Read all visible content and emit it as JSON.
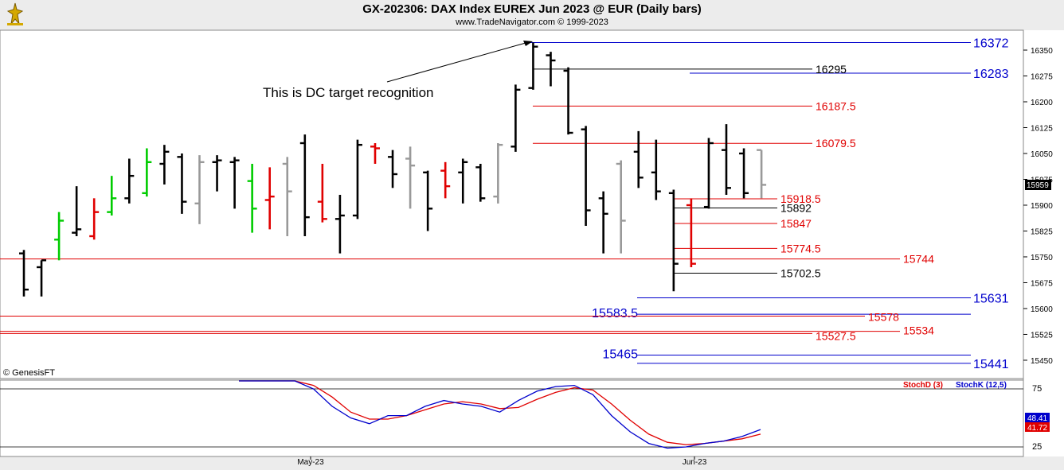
{
  "header": {
    "title": "GX-202306:  DAX Index EUREX Jun 2023 @ EUR  (Daily bars)",
    "subtitle": "www.TradeNavigator.com © 1999-2023"
  },
  "copyright": "© GenesisFT",
  "annotation": "This is DC target recognition",
  "price_axis": {
    "ticks": [
      "16350",
      "16275",
      "16200",
      "16125",
      "16050",
      "15975",
      "15900",
      "15825",
      "15750",
      "15675",
      "15600",
      "15525",
      "15450"
    ],
    "last_price_label": "15959"
  },
  "date_axis": {
    "labels": [
      "May-23",
      "Jun-23"
    ]
  },
  "levels": {
    "blue": [
      {
        "label": "16372",
        "value": 16372
      },
      {
        "label": "16283",
        "value": 16283
      },
      {
        "label": "15631",
        "value": 15631
      },
      {
        "label": "15583.5",
        "value": 15583.5
      },
      {
        "label": "15465",
        "value": 15465
      },
      {
        "label": "15441",
        "value": 15441
      }
    ],
    "red": [
      {
        "label": "16187.5",
        "value": 16187.5
      },
      {
        "label": "16079.5",
        "value": 16079.5
      },
      {
        "label": "15918.5",
        "value": 15918.5
      },
      {
        "label": "15847",
        "value": 15847
      },
      {
        "label": "15774.5",
        "value": 15774.5
      },
      {
        "label": "15744",
        "value": 15744
      },
      {
        "label": "15578",
        "value": 15578
      },
      {
        "label": "15534",
        "value": 15534
      },
      {
        "label": "15527.5",
        "value": 15527.5
      }
    ],
    "black": [
      {
        "label": "16295",
        "value": 16295
      },
      {
        "label": "15892",
        "value": 15892
      },
      {
        "label": "15702.5",
        "value": 15702.5
      }
    ]
  },
  "stoch": {
    "legend_d": "StochD (3)",
    "legend_k": "StochK (12,5)",
    "ticks": [
      "75",
      "25"
    ],
    "value_k": "48.41",
    "value_d": "41.72",
    "k": [
      98,
      90,
      85,
      82,
      75,
      60,
      50,
      45,
      52,
      52,
      60,
      65,
      62,
      60,
      55,
      65,
      73,
      77,
      78,
      70,
      52,
      38,
      28,
      24,
      25,
      28,
      30,
      34,
      40
    ],
    "d": [
      98,
      95,
      90,
      85,
      78,
      68,
      55,
      49,
      49,
      52,
      57,
      62,
      64,
      62,
      58,
      59,
      66,
      72,
      76,
      74,
      62,
      48,
      36,
      29,
      27,
      28,
      30,
      32,
      36
    ]
  },
  "colors": {
    "blue": "#0000cc",
    "red": "#e00000",
    "green": "#00cc00",
    "gray": "#999999",
    "black": "#000000"
  },
  "chart_data": {
    "type": "ohlc",
    "title": "GX-202306:  DAX Index EUREX Jun 2023 @ EUR  (Daily bars)",
    "x_labels": [
      "May-23",
      "Jun-23"
    ],
    "ylim": [
      15400,
      16400
    ],
    "bars": [
      {
        "h": 15770,
        "l": 15635,
        "o": 15760,
        "c": 15655,
        "col": "black"
      },
      {
        "h": 15740,
        "l": 15635,
        "o": 15720,
        "c": 15740,
        "col": "black"
      },
      {
        "h": 15880,
        "l": 15740,
        "o": 15800,
        "c": 15855,
        "col": "green"
      },
      {
        "h": 15955,
        "l": 15810,
        "o": 15820,
        "c": 15830,
        "col": "black"
      },
      {
        "h": 15920,
        "l": 15800,
        "o": 15810,
        "c": 15880,
        "col": "red"
      },
      {
        "h": 15985,
        "l": 15870,
        "o": 15880,
        "c": 15920,
        "col": "green"
      },
      {
        "h": 16035,
        "l": 15905,
        "o": 15920,
        "c": 15985,
        "col": "black"
      },
      {
        "h": 16065,
        "l": 15925,
        "o": 15935,
        "c": 16025,
        "col": "green"
      },
      {
        "h": 16075,
        "l": 15960,
        "o": 16020,
        "c": 16055,
        "col": "black"
      },
      {
        "h": 16050,
        "l": 15875,
        "o": 16040,
        "c": 15910,
        "col": "black"
      },
      {
        "h": 16045,
        "l": 15845,
        "o": 15905,
        "c": 16025,
        "col": "gray"
      },
      {
        "h": 16045,
        "l": 15940,
        "o": 16025,
        "c": 16030,
        "col": "black"
      },
      {
        "h": 16040,
        "l": 15890,
        "o": 16025,
        "c": 16030,
        "col": "black"
      },
      {
        "h": 16020,
        "l": 15820,
        "o": 15970,
        "c": 15890,
        "col": "green"
      },
      {
        "h": 16010,
        "l": 15830,
        "o": 15915,
        "c": 15925,
        "col": "red"
      },
      {
        "h": 16040,
        "l": 15810,
        "o": 16020,
        "c": 15940,
        "col": "gray"
      },
      {
        "h": 16105,
        "l": 15810,
        "o": 16080,
        "c": 15865,
        "col": "black"
      },
      {
        "h": 16020,
        "l": 15850,
        "o": 15910,
        "c": 15860,
        "col": "red"
      },
      {
        "h": 15930,
        "l": 15760,
        "o": 15860,
        "c": 15870,
        "col": "black"
      },
      {
        "h": 16090,
        "l": 15860,
        "o": 15870,
        "c": 16075,
        "col": "black"
      },
      {
        "h": 16080,
        "l": 16020,
        "o": 16070,
        "c": 16065,
        "col": "red"
      },
      {
        "h": 16060,
        "l": 15950,
        "o": 16040,
        "c": 15990,
        "col": "black"
      },
      {
        "h": 16070,
        "l": 15890,
        "o": 16035,
        "c": 16015,
        "col": "gray"
      },
      {
        "h": 16000,
        "l": 15825,
        "o": 15995,
        "c": 15890,
        "col": "black"
      },
      {
        "h": 16025,
        "l": 15920,
        "o": 16000,
        "c": 15955,
        "col": "red"
      },
      {
        "h": 16035,
        "l": 15905,
        "o": 15995,
        "c": 16025,
        "col": "black"
      },
      {
        "h": 16020,
        "l": 15910,
        "o": 16010,
        "c": 15920,
        "col": "black"
      },
      {
        "h": 16080,
        "l": 15905,
        "o": 15925,
        "c": 16075,
        "col": "gray"
      },
      {
        "h": 16250,
        "l": 16055,
        "o": 16070,
        "c": 16235,
        "col": "black"
      },
      {
        "h": 16372,
        "l": 16235,
        "o": 16240,
        "c": 16360,
        "col": "black"
      },
      {
        "h": 16345,
        "l": 16245,
        "o": 16335,
        "c": 16320,
        "col": "black"
      },
      {
        "h": 16300,
        "l": 16105,
        "o": 16290,
        "c": 16110,
        "col": "black"
      },
      {
        "h": 16130,
        "l": 15840,
        "o": 16120,
        "c": 15885,
        "col": "black"
      },
      {
        "h": 15940,
        "l": 15760,
        "o": 15920,
        "c": 15875,
        "col": "black"
      },
      {
        "h": 16030,
        "l": 15760,
        "o": 16020,
        "c": 15855,
        "col": "gray"
      },
      {
        "h": 16115,
        "l": 15950,
        "o": 16055,
        "c": 15980,
        "col": "black"
      },
      {
        "h": 16090,
        "l": 15915,
        "o": 15995,
        "c": 15940,
        "col": "black"
      },
      {
        "h": 15945,
        "l": 15650,
        "o": 15935,
        "c": 15730,
        "col": "black"
      },
      {
        "h": 15920,
        "l": 15720,
        "o": 15900,
        "c": 15730,
        "col": "red"
      },
      {
        "h": 16095,
        "l": 15890,
        "o": 15895,
        "c": 16080,
        "col": "black"
      },
      {
        "h": 16135,
        "l": 15930,
        "o": 16060,
        "c": 15950,
        "col": "black"
      },
      {
        "h": 16065,
        "l": 15920,
        "o": 16050,
        "c": 15935,
        "col": "black"
      },
      {
        "h": 16060,
        "l": 15920,
        "o": 16060,
        "c": 15959,
        "col": "gray"
      }
    ]
  }
}
